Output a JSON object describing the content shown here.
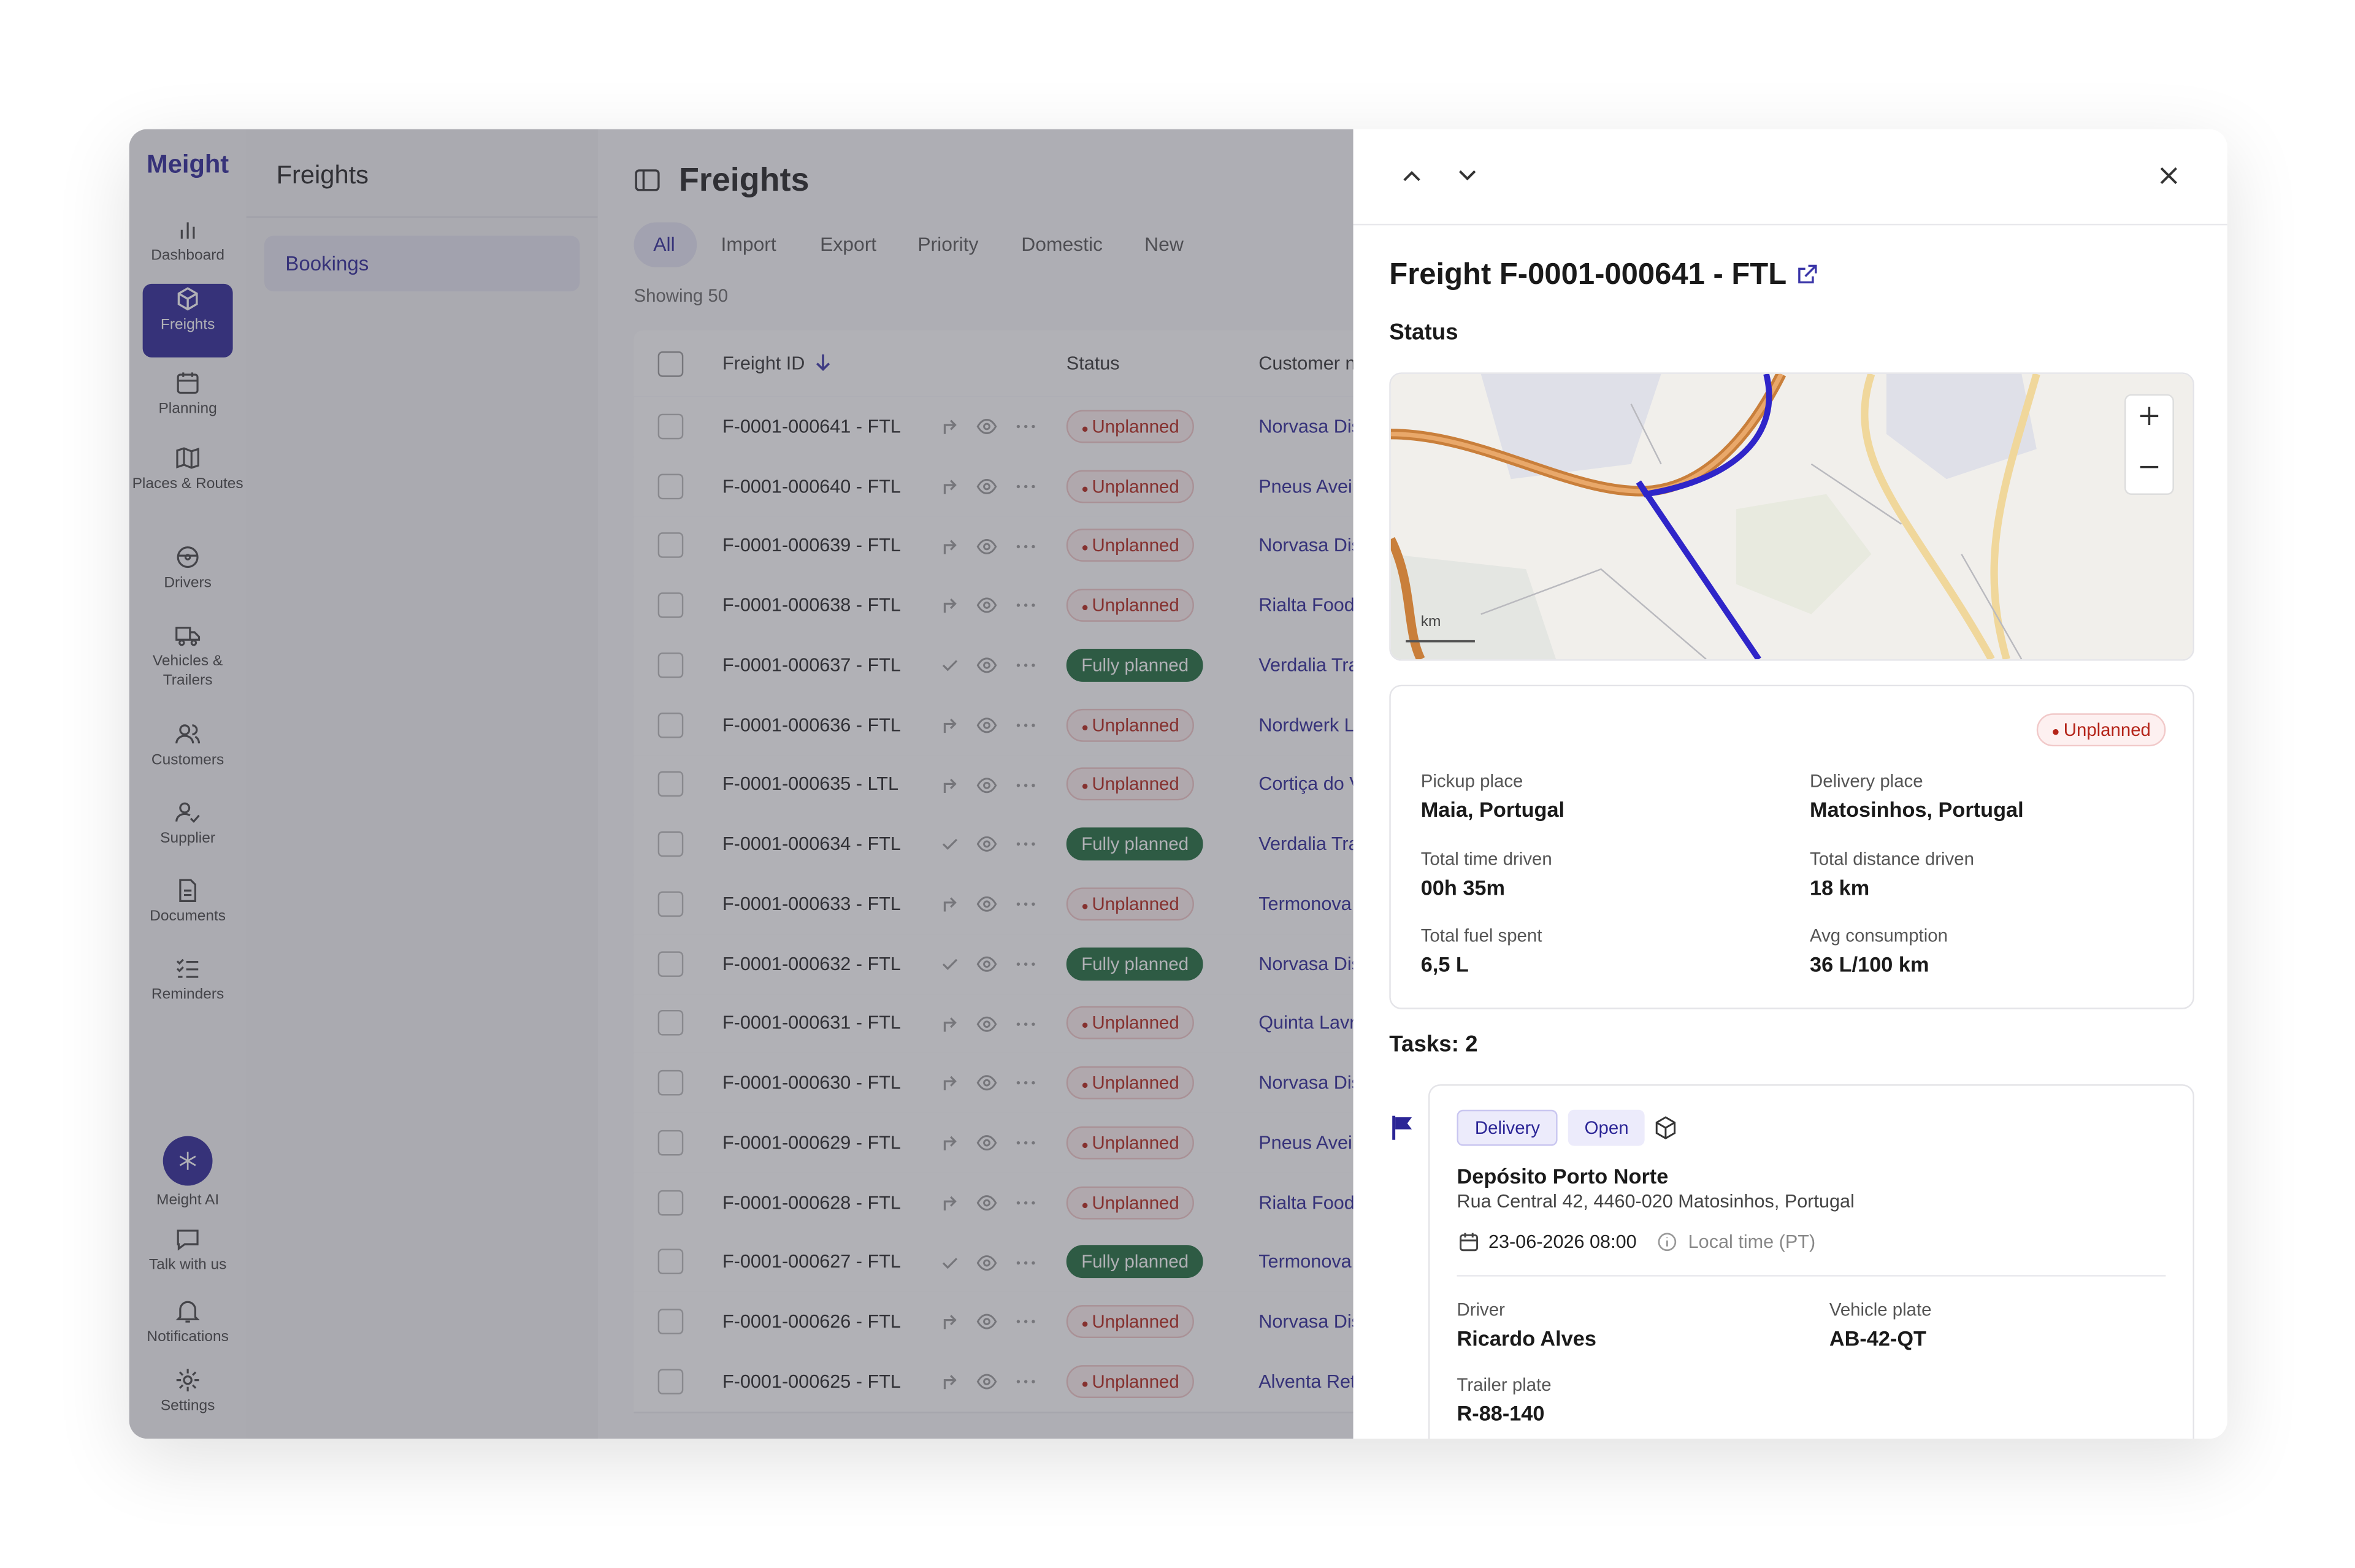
{
  "app": {
    "logo": "Meight"
  },
  "nav": [
    "Dashboard",
    "Freights",
    "Planning",
    "Places & Routes",
    "Drivers",
    "Vehicles & Trailers",
    "Customers",
    "Supplier",
    "Documents",
    "Reminders"
  ],
  "nav_bottom": [
    "Meight AI",
    "Talk with us",
    "Notifications",
    "Settings"
  ],
  "sidebar": {
    "title": "Freights",
    "items": [
      "Bookings"
    ]
  },
  "main": {
    "title": "Freights",
    "tabs": [
      "All",
      "Import",
      "Export",
      "Priority",
      "Domestic",
      "New"
    ],
    "showing": "Showing 50",
    "columns": [
      "Freight ID",
      "Status",
      "Customer n"
    ],
    "rows": [
      [
        "F-0001-000641 - FTL",
        "Unplanned",
        "Norvasa Dis"
      ],
      [
        "F-0001-000640 - FTL",
        "Unplanned",
        "Pneus Avei"
      ],
      [
        "F-0001-000639 - FTL",
        "Unplanned",
        "Norvasa Dis"
      ],
      [
        "F-0001-000638 - FTL",
        "Unplanned",
        "Rialta Food"
      ],
      [
        "F-0001-000637 - FTL",
        "Fully planned",
        "Verdalia Tra"
      ],
      [
        "F-0001-000636 - FTL",
        "Unplanned",
        "Nordwerk L"
      ],
      [
        "F-0001-000635 - LTL",
        "Unplanned",
        "Cortiça do V"
      ],
      [
        "F-0001-000634 - FTL",
        "Fully planned",
        "Verdalia Tra"
      ],
      [
        "F-0001-000633 - FTL",
        "Unplanned",
        "Termonova"
      ],
      [
        "F-0001-000632 - FTL",
        "Fully planned",
        "Norvasa Dis"
      ],
      [
        "F-0001-000631 - FTL",
        "Unplanned",
        "Quinta Lavr"
      ],
      [
        "F-0001-000630 - FTL",
        "Unplanned",
        "Norvasa Dis"
      ],
      [
        "F-0001-000629 - FTL",
        "Unplanned",
        "Pneus Avei"
      ],
      [
        "F-0001-000628 - FTL",
        "Unplanned",
        "Rialta Food"
      ],
      [
        "F-0001-000627 - FTL",
        "Fully planned",
        "Termonova"
      ],
      [
        "F-0001-000626 - FTL",
        "Unplanned",
        "Norvasa Dis"
      ],
      [
        "F-0001-000625 - FTL",
        "Unplanned",
        "Alventa Ret"
      ]
    ]
  },
  "panel": {
    "title": "Freight F-0001-000641 - FTL",
    "status_heading": "Status",
    "map_scale": "km",
    "status": "Unplanned",
    "fields": [
      [
        "Pickup place",
        "Maia, Portugal"
      ],
      [
        "Delivery place",
        "Matosinhos, Portugal"
      ],
      [
        "Total time driven",
        "00h 35m"
      ],
      [
        "Total distance driven",
        "18 km"
      ],
      [
        "Total fuel spent",
        "6,5 L"
      ],
      [
        "Avg consumption",
        "36 L/100 km"
      ]
    ],
    "tasks_heading": "Tasks: 2",
    "task": {
      "type": "Delivery",
      "state": "Open",
      "name": "Depósito Porto Norte",
      "address": "Rua Central 42, 4460-020 Matosinhos, Portugal",
      "date": "23-06-2026 08:00",
      "timezone": "Local time (PT)",
      "fields": [
        [
          "Driver",
          "Ricardo Alves"
        ],
        [
          "Vehicle plate",
          "AB-42-QT"
        ],
        [
          "Trailer plate",
          "R-88-140"
        ]
      ]
    }
  }
}
